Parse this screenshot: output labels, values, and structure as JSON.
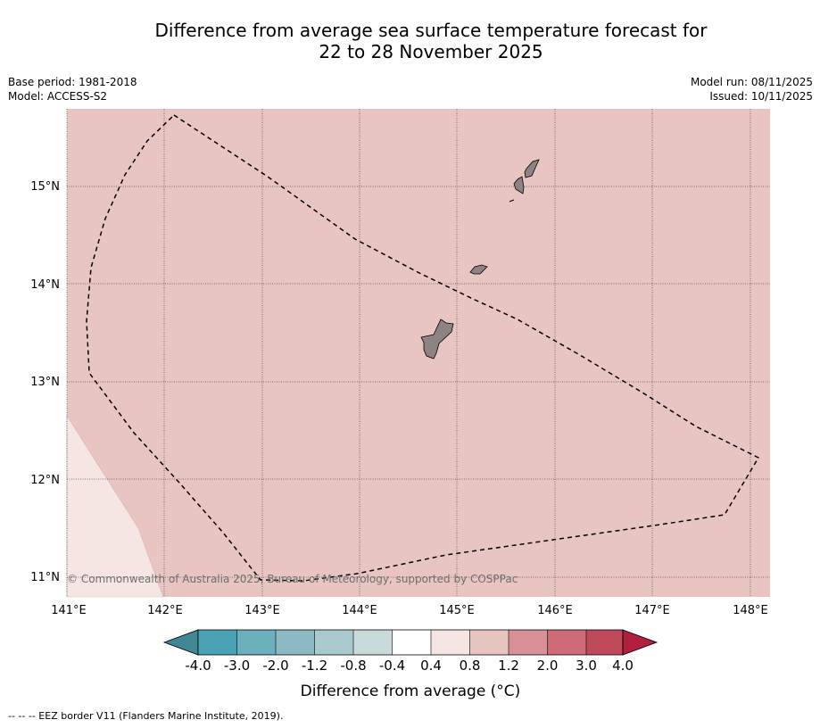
{
  "header": {
    "title_line1": "Difference from average sea surface temperature forecast for",
    "title_line2": "22 to 28 November 2025",
    "base_period": "Base period: 1981-2018",
    "model": "Model: ACCESS-S2",
    "model_run": "Model run: 08/11/2025",
    "issued": "Issued: 10/11/2025"
  },
  "map": {
    "lon_labels": [
      "141°E",
      "142°E",
      "143°E",
      "144°E",
      "145°E",
      "146°E",
      "147°E",
      "148°E"
    ],
    "lat_labels": [
      "15°N",
      "14°N",
      "13°N",
      "12°N",
      "11°N"
    ],
    "lon_range": [
      141.0,
      148.2
    ],
    "lat_range": [
      10.8,
      15.8
    ],
    "background_category": "0.8 to 1.2",
    "corner_category": "0.4 to 0.8",
    "copyright": "© Commonwealth of Australia 2025, Bureau of Meteorology, supported by COSPPac"
  },
  "colorbar": {
    "title": "Difference from average (°C)",
    "tick_labels": [
      "-4.0",
      "-3.0",
      "-2.0",
      "-1.2",
      "-0.8",
      "-0.4",
      "0.4",
      "0.8",
      "1.2",
      "2.0",
      "3.0",
      "4.0"
    ],
    "colors": [
      "#4aa3b5",
      "#6cafbd",
      "#8cb9c4",
      "#a9c9cd",
      "#c9dadd",
      "#ffffff",
      "#f5e6e4",
      "#e8c5c1",
      "#d98f98",
      "#cc6a78",
      "#c04959",
      "#b11f3f"
    ],
    "extend_low_color": "#3f8794",
    "extend_high_color": "#b11f3f"
  },
  "footnote": "--  --  -- EEZ border V11 (Flanders Marine Institute, 2019)."
}
